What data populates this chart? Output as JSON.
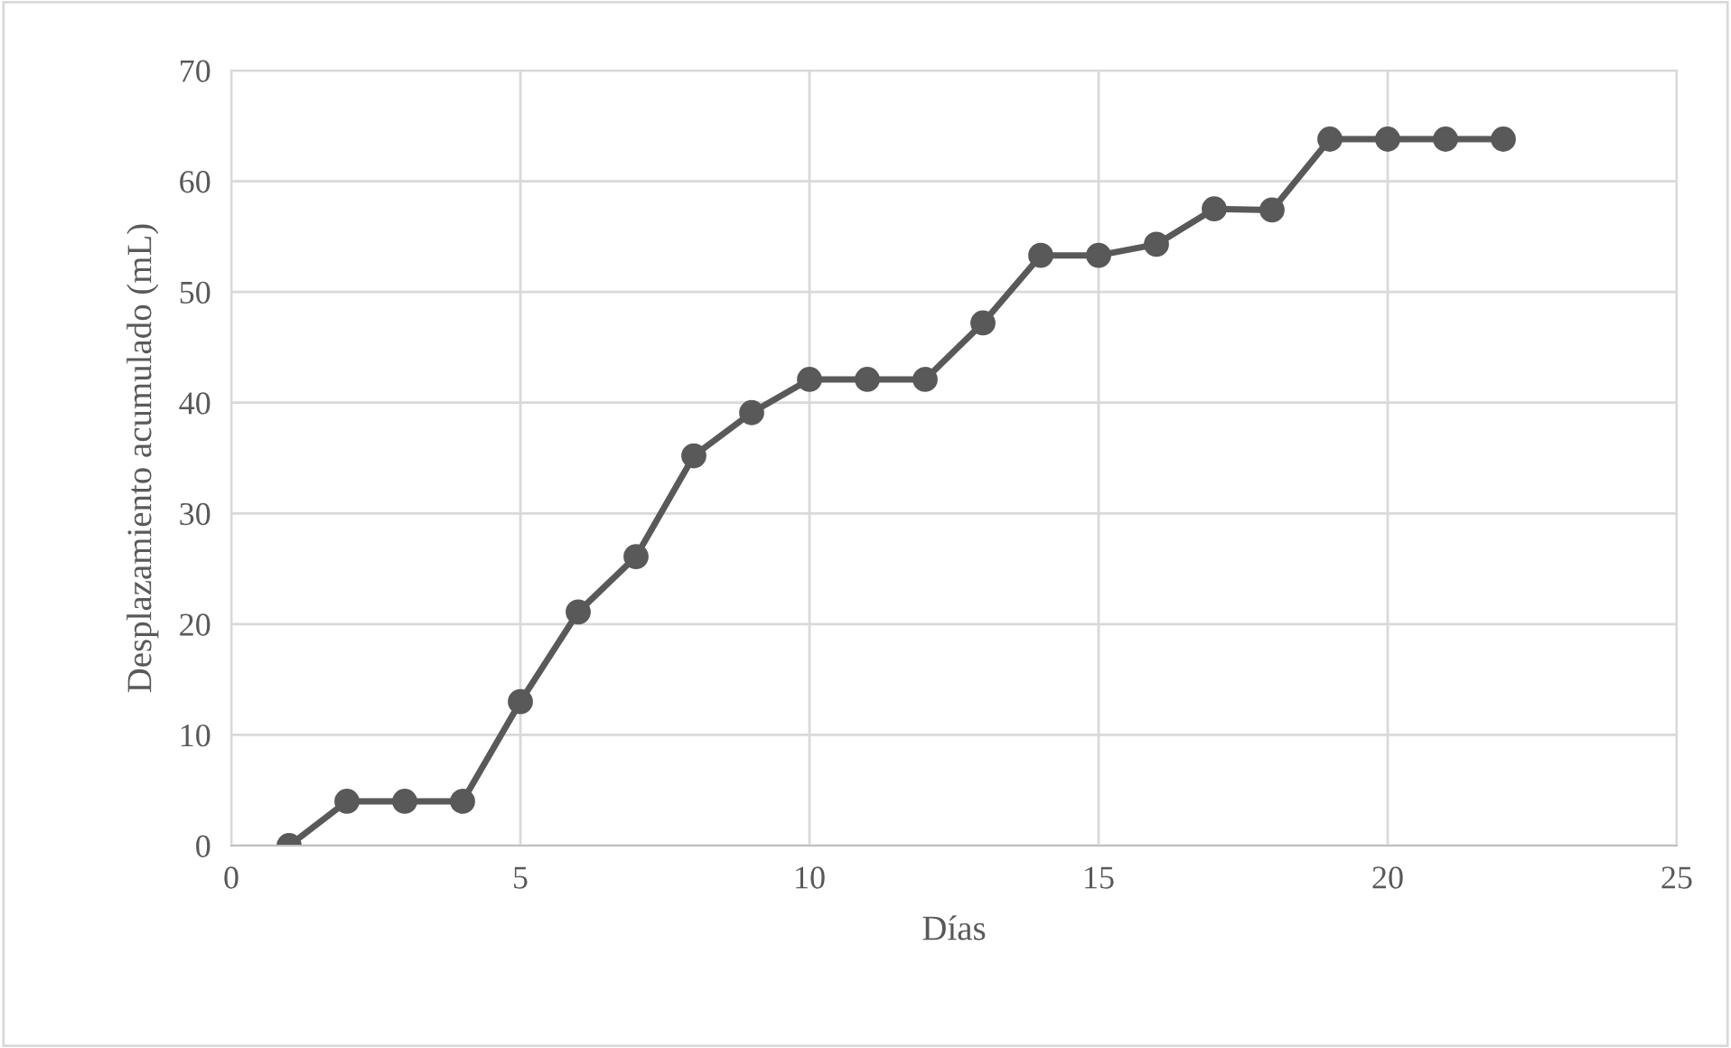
{
  "chart_data": {
    "type": "line",
    "xlabel": "Días",
    "ylabel": "Desplazamiento acumulado (mL)",
    "x": [
      1,
      2,
      3,
      4,
      5,
      6,
      7,
      8,
      9,
      10,
      11,
      12,
      13,
      14,
      15,
      16,
      17,
      18,
      19,
      20,
      21,
      22
    ],
    "series": [
      {
        "color": "#595959",
        "values": [
          0,
          4,
          4,
          4,
          13,
          21.1,
          26.1,
          35.2,
          39.1,
          42.1,
          42.1,
          42.1,
          47.2,
          53.3,
          53.3,
          54.3,
          57.5,
          57.4,
          63.8,
          63.8,
          63.8,
          63.8
        ]
      }
    ],
    "xlim": [
      0,
      25
    ],
    "xticks": [
      0,
      5,
      10,
      15,
      20,
      25
    ],
    "ylim": [
      0,
      70
    ],
    "yticks": [
      0,
      10,
      20,
      30,
      40,
      50,
      60,
      70
    ],
    "grid": true,
    "marker": "circle",
    "line_style": "solid"
  }
}
